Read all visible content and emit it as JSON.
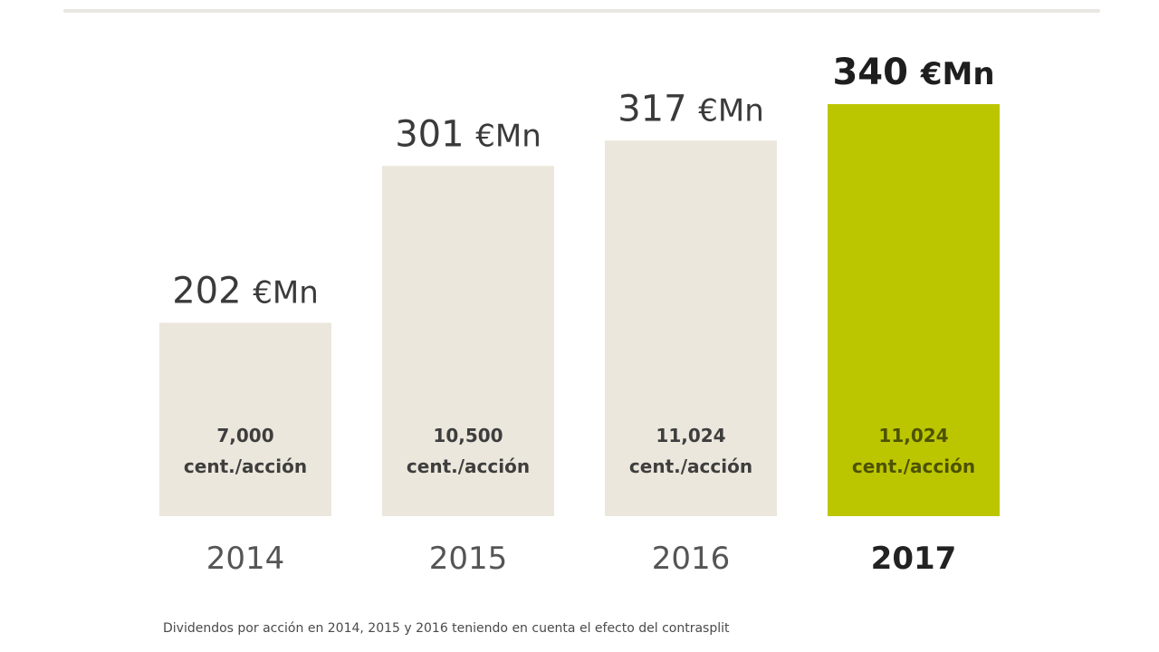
{
  "chart_data": {
    "type": "bar",
    "categories": [
      "2014",
      "2015",
      "2016",
      "2017"
    ],
    "values": [
      202,
      301,
      317,
      340
    ],
    "value_unit": "€Mn",
    "per_share_values": [
      "7,000",
      "10,500",
      "11,024",
      "11,024"
    ],
    "per_share_unit": "cent./acción",
    "highlight_index": 3,
    "ylim": [
      0,
      340
    ],
    "grid": false,
    "colors": {
      "bar": "#ebe7dc",
      "highlight_bar": "#bcc600"
    }
  },
  "footnote": "Dividendos por acción en 2014, 2015 y 2016 teniendo en cuenta el efecto del contrasplit"
}
